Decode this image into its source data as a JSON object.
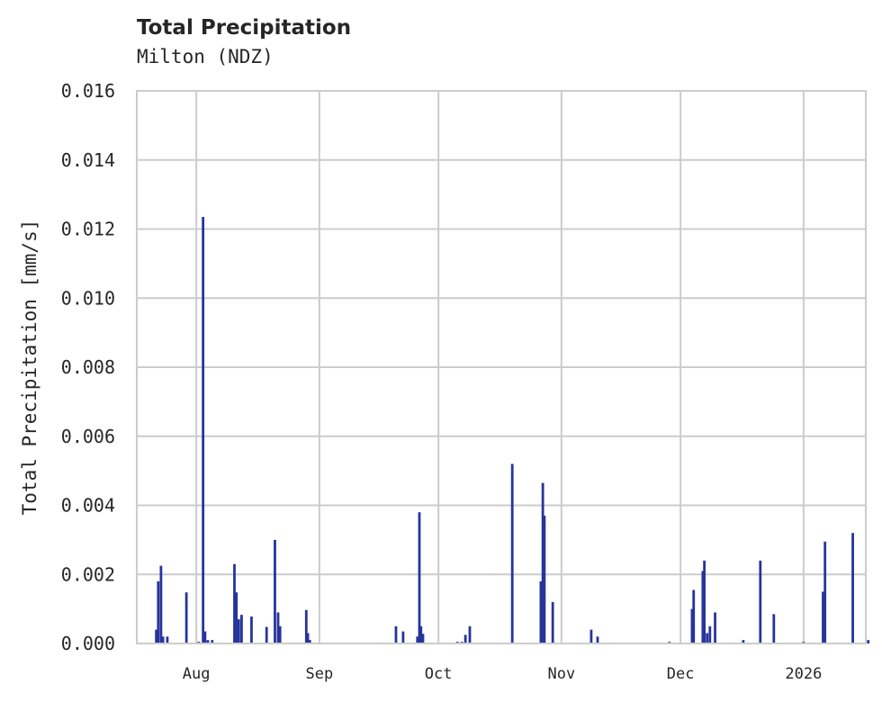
{
  "chart": {
    "title": "Total Precipitation",
    "subtitle": "Milton (NDZ)",
    "ylabel": "Total Precipitation [mm/s]",
    "bar_color": "#27349b",
    "grid_color": "#cccccc"
  },
  "chart_data": {
    "type": "bar",
    "title": "Total Precipitation",
    "subtitle": "Milton (NDZ)",
    "xlabel": "",
    "ylabel": "Total Precipitation [mm/s]",
    "ylim": [
      0,
      0.016
    ],
    "xlim": [
      "2025-07-17",
      "2026-01-17"
    ],
    "grid": true,
    "yticks": [
      "0.000",
      "0.002",
      "0.004",
      "0.006",
      "0.008",
      "0.010",
      "0.012",
      "0.014",
      "0.016"
    ],
    "xticks": [
      {
        "label": "Aug",
        "date": "2025-08-01"
      },
      {
        "label": "Sep",
        "date": "2025-09-01"
      },
      {
        "label": "Oct",
        "date": "2025-10-01"
      },
      {
        "label": "Nov",
        "date": "2025-11-01"
      },
      {
        "label": "Dec",
        "date": "2025-12-01"
      },
      {
        "label": "2026",
        "date": "2026-01-01"
      }
    ],
    "series": [
      {
        "name": "Total Precipitation",
        "points": [
          {
            "day": 4.9,
            "value": 0.0004
          },
          {
            "day": 5.4,
            "value": 0.0018
          },
          {
            "day": 6.1,
            "value": 0.00225
          },
          {
            "day": 6.6,
            "value": 0.0002
          },
          {
            "day": 7.7,
            "value": 0.0002
          },
          {
            "day": 12.5,
            "value": 0.00148
          },
          {
            "day": 15.6,
            "value": 5e-05
          },
          {
            "day": 16.7,
            "value": 0.01235
          },
          {
            "day": 17.2,
            "value": 0.00035
          },
          {
            "day": 17.9,
            "value": 0.0001
          },
          {
            "day": 19.0,
            "value": 0.0001
          },
          {
            "day": 24.6,
            "value": 0.0023
          },
          {
            "day": 25.1,
            "value": 0.00148
          },
          {
            "day": 25.7,
            "value": 0.0007
          },
          {
            "day": 26.4,
            "value": 0.00083
          },
          {
            "day": 28.9,
            "value": 0.00078
          },
          {
            "day": 32.7,
            "value": 0.00048
          },
          {
            "day": 34.8,
            "value": 0.003
          },
          {
            "day": 35.6,
            "value": 0.0009
          },
          {
            "day": 36.1,
            "value": 0.0005
          },
          {
            "day": 42.7,
            "value": 0.00097
          },
          {
            "day": 43.1,
            "value": 0.0003
          },
          {
            "day": 43.6,
            "value": 0.0001
          },
          {
            "day": 65.3,
            "value": 0.0005
          },
          {
            "day": 67.1,
            "value": 0.00035
          },
          {
            "day": 70.7,
            "value": 0.0002
          },
          {
            "day": 71.2,
            "value": 0.0038
          },
          {
            "day": 71.6,
            "value": 0.0005
          },
          {
            "day": 72.1,
            "value": 0.00028
          },
          {
            "day": 80.8,
            "value": 5e-05
          },
          {
            "day": 81.9,
            "value": 5e-05
          },
          {
            "day": 82.8,
            "value": 0.00025
          },
          {
            "day": 83.9,
            "value": 0.0005
          },
          {
            "day": 94.6,
            "value": 0.0052
          },
          {
            "day": 101.8,
            "value": 0.0018
          },
          {
            "day": 102.3,
            "value": 0.00465
          },
          {
            "day": 102.7,
            "value": 0.0037
          },
          {
            "day": 104.8,
            "value": 0.0012
          },
          {
            "day": 114.5,
            "value": 0.0004
          },
          {
            "day": 116.1,
            "value": 0.0002
          },
          {
            "day": 134.2,
            "value": 5e-05
          },
          {
            "day": 139.9,
            "value": 0.001
          },
          {
            "day": 140.3,
            "value": 0.00155
          },
          {
            "day": 142.6,
            "value": 0.0021
          },
          {
            "day": 143.0,
            "value": 0.0024
          },
          {
            "day": 143.7,
            "value": 0.0003
          },
          {
            "day": 144.4,
            "value": 0.0005
          },
          {
            "day": 145.7,
            "value": 0.0009
          },
          {
            "day": 152.8,
            "value": 0.0001
          },
          {
            "day": 157.1,
            "value": 0.0024
          },
          {
            "day": 160.5,
            "value": 0.00085
          },
          {
            "day": 168.0,
            "value": 5e-05
          },
          {
            "day": 172.9,
            "value": 0.0015
          },
          {
            "day": 173.4,
            "value": 0.00295
          },
          {
            "day": 180.4,
            "value": 0.0032
          },
          {
            "day": 184.3,
            "value": 0.0001
          }
        ]
      }
    ]
  }
}
